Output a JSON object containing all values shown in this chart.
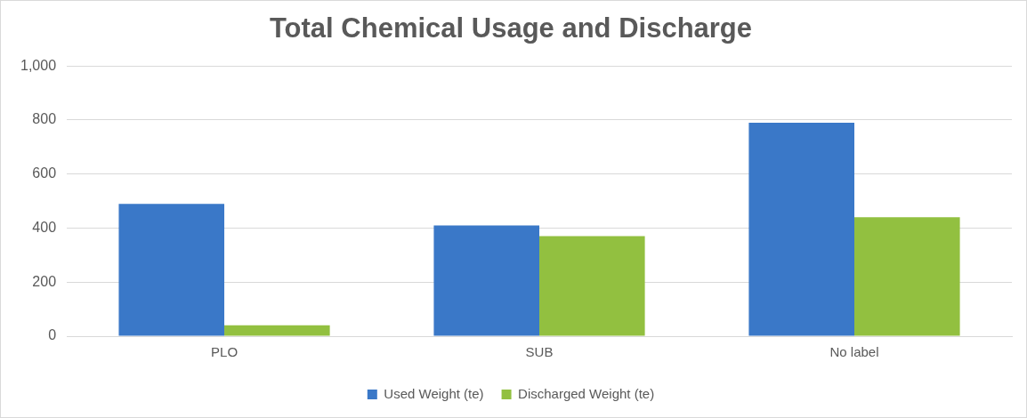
{
  "chart_data": {
    "type": "bar",
    "title": "Total Chemical Usage and Discharge",
    "categories": [
      "PLO",
      "SUB",
      "No label"
    ],
    "series": [
      {
        "name": "Used Weight (te)",
        "color": "#3a78c8",
        "values": [
          490,
          410,
          790
        ]
      },
      {
        "name": "Discharged Weight (te)",
        "color": "#92c040",
        "values": [
          40,
          370,
          440
        ]
      }
    ],
    "ylim": [
      0,
      1000
    ],
    "yticks": [
      0,
      {
        "value": 200,
        "label": "200"
      },
      {
        "value": 400,
        "label": "400"
      },
      {
        "value": 600,
        "label": "600"
      },
      {
        "value": 800,
        "label": "800"
      },
      {
        "value": 1000,
        "label": "1,000"
      }
    ],
    "grid": "y",
    "legend": "bottom"
  }
}
